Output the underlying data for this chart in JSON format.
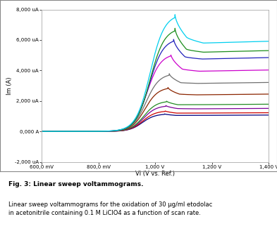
{
  "title": "",
  "xlabel": "Vl (V vs. Ref.)",
  "ylabel": "Im (A)",
  "xlim": [
    0.6,
    1.4
  ],
  "ylim": [
    -2000,
    8000
  ],
  "xticks": [
    0.6,
    0.8,
    1.0,
    1.2,
    1.4
  ],
  "xtick_labels": [
    "600,0 mV",
    "800,0 mV",
    "1,000 V",
    "1,200 V",
    "1,400 V"
  ],
  "yticks": [
    -2000,
    0,
    2000,
    4000,
    6000,
    8000
  ],
  "ytick_labels": [
    "-2,000 uA",
    "0,000 A",
    "2,000 uA",
    "4,000 uA",
    "6,000 uA",
    "8,000 uA"
  ],
  "caption_title": "Fig. 3: Linear sweep voltammograms.",
  "caption_body": "Linear sweep voltammograms for the oxidation of 30 μg/ml etodolac\nin acetonitrile containing 0.1 M LiClO4 as a function of scan rate.",
  "curves": [
    {
      "color": "#00CFEF",
      "peak_height": 7700,
      "dip": 6200,
      "plateau": 5800,
      "peak_x": 1.07
    },
    {
      "color": "#1A8C1A",
      "peak_height": 6800,
      "dip": 5400,
      "plateau": 5200,
      "peak_x": 1.07
    },
    {
      "color": "#2020BB",
      "peak_height": 6100,
      "dip": 4900,
      "plateau": 4750,
      "peak_x": 1.065
    },
    {
      "color": "#CC00CC",
      "peak_height": 5100,
      "dip": 4100,
      "plateau": 3950,
      "peak_x": 1.055
    },
    {
      "color": "#707070",
      "peak_height": 3800,
      "dip": 3200,
      "plateau": 3150,
      "peak_x": 1.05
    },
    {
      "color": "#8B2500",
      "peak_height": 2900,
      "dip": 2450,
      "plateau": 2400,
      "peak_x": 1.045
    },
    {
      "color": "#228B22",
      "peak_height": 2000,
      "dip": 1750,
      "plateau": 1750,
      "peak_x": 1.04
    },
    {
      "color": "#7B0099",
      "peak_height": 1700,
      "dip": 1500,
      "plateau": 1480,
      "peak_x": 1.038
    },
    {
      "color": "#CC0000",
      "peak_height": 1350,
      "dip": 1200,
      "plateau": 1200,
      "peak_x": 1.035
    },
    {
      "color": "#000080",
      "peak_height": 1150,
      "dip": 1050,
      "plateau": 1050,
      "peak_x": 1.033
    }
  ],
  "background_color": "#FFFFFF",
  "plot_bg_color": "#FFFFFF"
}
